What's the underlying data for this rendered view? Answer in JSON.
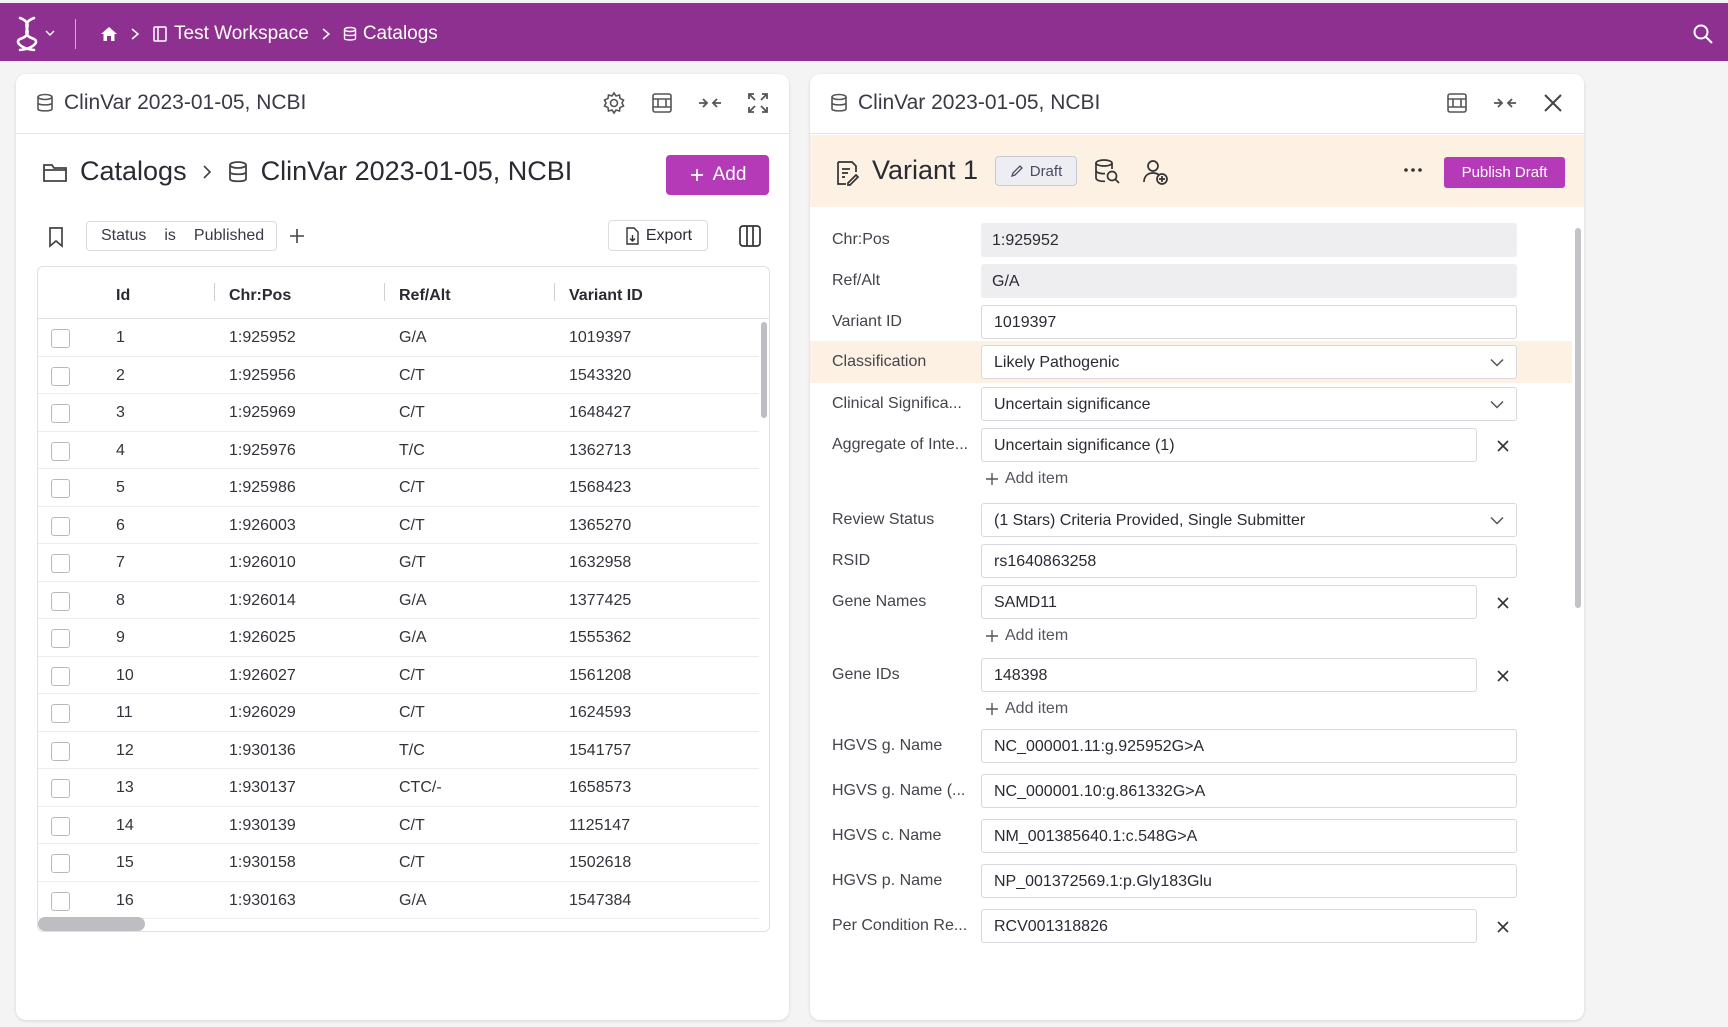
{
  "topbar": {
    "breadcrumb": {
      "workspace": "Test Workspace",
      "catalogs": "Catalogs"
    },
    "colors": {
      "brand": "#8e3090",
      "accent": "#b43ab8"
    }
  },
  "left_panel": {
    "title": "ClinVar 2023-01-05, NCBI",
    "breadcrumb": {
      "root": "Catalogs",
      "current": "ClinVar 2023-01-05, NCBI"
    },
    "add_label": "Add",
    "filter": {
      "field": "Status",
      "op": "is",
      "value": "Published"
    },
    "export_label": "Export",
    "columns": [
      "Id",
      "Chr:Pos",
      "Ref/Alt",
      "Variant ID"
    ],
    "rows": [
      [
        "1",
        "1:925952",
        "G/A",
        "1019397"
      ],
      [
        "2",
        "1:925956",
        "C/T",
        "1543320"
      ],
      [
        "3",
        "1:925969",
        "C/T",
        "1648427"
      ],
      [
        "4",
        "1:925976",
        "T/C",
        "1362713"
      ],
      [
        "5",
        "1:925986",
        "C/T",
        "1568423"
      ],
      [
        "6",
        "1:926003",
        "C/T",
        "1365270"
      ],
      [
        "7",
        "1:926010",
        "G/T",
        "1632958"
      ],
      [
        "8",
        "1:926014",
        "G/A",
        "1377425"
      ],
      [
        "9",
        "1:926025",
        "G/A",
        "1555362"
      ],
      [
        "10",
        "1:926027",
        "C/T",
        "1561208"
      ],
      [
        "11",
        "1:926029",
        "C/T",
        "1624593"
      ],
      [
        "12",
        "1:930136",
        "T/C",
        "1541757"
      ],
      [
        "13",
        "1:930137",
        "CTC/-",
        "1658573"
      ],
      [
        "14",
        "1:930139",
        "C/T",
        "1125147"
      ],
      [
        "15",
        "1:930158",
        "C/T",
        "1502618"
      ],
      [
        "16",
        "1:930163",
        "G/A",
        "1547384"
      ]
    ]
  },
  "right_panel": {
    "title": "ClinVar 2023-01-05, NCBI",
    "variant_title": "Variant 1",
    "draft_label": "Draft",
    "publish_label": "Publish Draft",
    "add_item_label": "Add item",
    "fields": {
      "chrpos": {
        "label": "Chr:Pos",
        "value": "1:925952"
      },
      "refalt": {
        "label": "Ref/Alt",
        "value": "G/A"
      },
      "variant_id": {
        "label": "Variant ID",
        "value": "1019397"
      },
      "classification": {
        "label": "Classification",
        "value": "Likely Pathogenic"
      },
      "clinical_significance": {
        "label": "Clinical Significa...",
        "value": "Uncertain significance"
      },
      "aggregate": {
        "label": "Aggregate of Inte...",
        "value": "Uncertain significance (1)"
      },
      "review_status": {
        "label": "Review Status",
        "value": "(1 Stars) Criteria Provided, Single Submitter"
      },
      "rsid": {
        "label": "RSID",
        "value": "rs1640863258"
      },
      "gene_names": {
        "label": "Gene Names",
        "value": "SAMD11"
      },
      "gene_ids": {
        "label": "Gene IDs",
        "value": "148398"
      },
      "hgvs_g": {
        "label": "HGVS g. Name",
        "value": "NC_000001.11:g.925952G>A"
      },
      "hgvs_g_prev": {
        "label": "HGVS g. Name (...",
        "value": "NC_000001.10:g.861332G>A"
      },
      "hgvs_c": {
        "label": "HGVS c. Name",
        "value": "NM_001385640.1:c.548G>A"
      },
      "hgvs_p": {
        "label": "HGVS p. Name",
        "value": "NP_001372569.1:p.Gly183Glu"
      },
      "per_condition": {
        "label": "Per Condition Re...",
        "value": "RCV001318826"
      }
    }
  }
}
